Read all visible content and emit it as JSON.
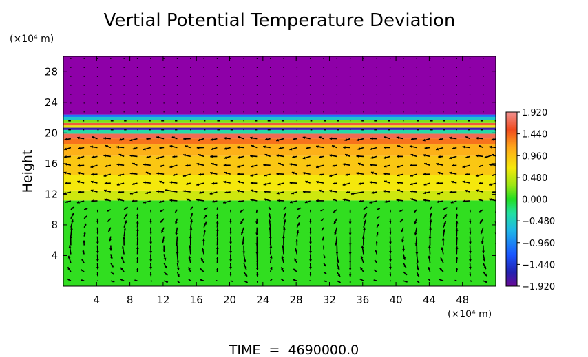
{
  "chart_data": {
    "type": "heatmap",
    "title": "Vertial Potential Temperature Deviation",
    "ylabel": "Height",
    "y_unit": "(×10⁴ m)",
    "x_unit": "(×10⁴ m)",
    "footer": "TIME  =  4690000.0",
    "xlim": [
      0,
      52
    ],
    "ylim": [
      0,
      30
    ],
    "x_ticks": [
      "4",
      "8",
      "12",
      "16",
      "20",
      "24",
      "28",
      "32",
      "36",
      "40",
      "44",
      "48"
    ],
    "x_tick_values": [
      4,
      8,
      12,
      16,
      20,
      24,
      28,
      32,
      36,
      40,
      44,
      48
    ],
    "y_ticks": [
      "4",
      "8",
      "12",
      "16",
      "20",
      "24",
      "28"
    ],
    "y_tick_values": [
      4,
      8,
      12,
      16,
      20,
      24,
      28
    ],
    "colorbar": {
      "labels": [
        "1.920",
        "1.440",
        "0.960",
        "0.480",
        "0.000",
        "−0.480",
        "−0.960",
        "−1.440",
        "−1.920"
      ],
      "values": [
        1.92,
        1.44,
        0.96,
        0.48,
        0.0,
        -0.48,
        -0.96,
        -1.44,
        -1.92
      ],
      "range": [
        -1.92,
        1.92
      ]
    },
    "layers": [
      {
        "y_from": 0,
        "y_to": 11.2,
        "value": 0.05
      },
      {
        "y_from": 11.2,
        "y_to": 12.5,
        "value": 0.6
      },
      {
        "y_from": 12.5,
        "y_to": 14.5,
        "value": 0.75
      },
      {
        "y_from": 14.5,
        "y_to": 17.0,
        "value": 0.9
      },
      {
        "y_from": 17.0,
        "y_to": 18.5,
        "value": 1.0
      },
      {
        "y_from": 18.5,
        "y_to": 19.3,
        "value": 1.3
      },
      {
        "y_from": 19.3,
        "y_to": 19.9,
        "value": 1.7
      },
      {
        "y_from": 19.9,
        "y_to": 20.4,
        "value": -0.3
      },
      {
        "y_from": 20.4,
        "y_to": 20.7,
        "value": -1.6
      },
      {
        "y_from": 20.7,
        "y_to": 21.0,
        "value": 0.7
      },
      {
        "y_from": 21.0,
        "y_to": 21.3,
        "value": 1.6
      },
      {
        "y_from": 21.3,
        "y_to": 21.7,
        "value": 0.3
      },
      {
        "y_from": 21.7,
        "y_to": 22.1,
        "value": -0.5
      },
      {
        "y_from": 22.1,
        "y_to": 22.4,
        "value": -1.0
      },
      {
        "y_from": 22.4,
        "y_to": 30,
        "value": -1.92
      }
    ],
    "colors": {
      "top": "#9400a4",
      "green": "#22dd22",
      "yellow": "#f5e80c",
      "orange": "#ff9a1a",
      "red": "#f03c20",
      "cyan": "#22ccdd",
      "blue": "#2244ee",
      "arrow": "#000000"
    }
  }
}
